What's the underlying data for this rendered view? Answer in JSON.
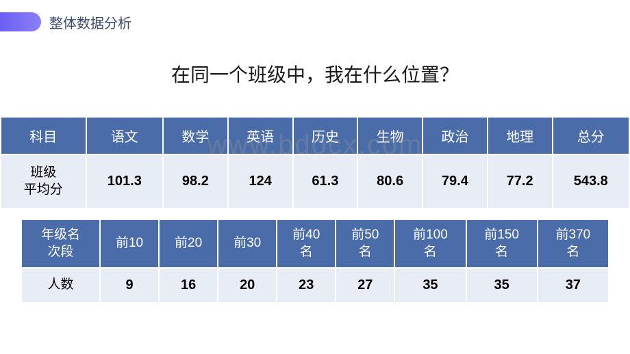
{
  "header": {
    "title": "整体数据分析"
  },
  "question": "在同一个班级中，我在什么位置？",
  "watermark": "www.bdocx.com",
  "table1": {
    "headers": [
      "科目",
      "语文",
      "数学",
      "英语",
      "历史",
      "生物",
      "政治",
      "地理",
      "总分"
    ],
    "row_label": "班级\n平均分",
    "values": [
      "101.3",
      "98.2",
      "124",
      "61.3",
      "80.6",
      "79.4",
      "77.2",
      "543.8"
    ],
    "header_bg": "#4a6ca8",
    "header_color": "#ffffff",
    "cell_bg": "#e8ecf4",
    "cell_color": "#000000",
    "border_color": "#ffffff"
  },
  "table2": {
    "headers": [
      "年级名\n次段",
      "前10",
      "前20",
      "前30",
      "前40\n名",
      "前50\n名",
      "前100\n名",
      "前150\n名",
      "前370\n名"
    ],
    "row_label": "人数",
    "values": [
      "9",
      "16",
      "20",
      "23",
      "27",
      "35",
      "35",
      "37"
    ],
    "header_bg": "#4a6ca8",
    "header_color": "#ffffff",
    "cell_bg": "#e8ecf4",
    "cell_color": "#000000",
    "border_color": "#ffffff"
  },
  "colors": {
    "badge_gradient_start": "#6b5ff5",
    "badge_gradient_end": "#8b7ff8",
    "header_text": "#3a4a6b",
    "question_text": "#1a1a1a",
    "background": "#ffffff"
  }
}
